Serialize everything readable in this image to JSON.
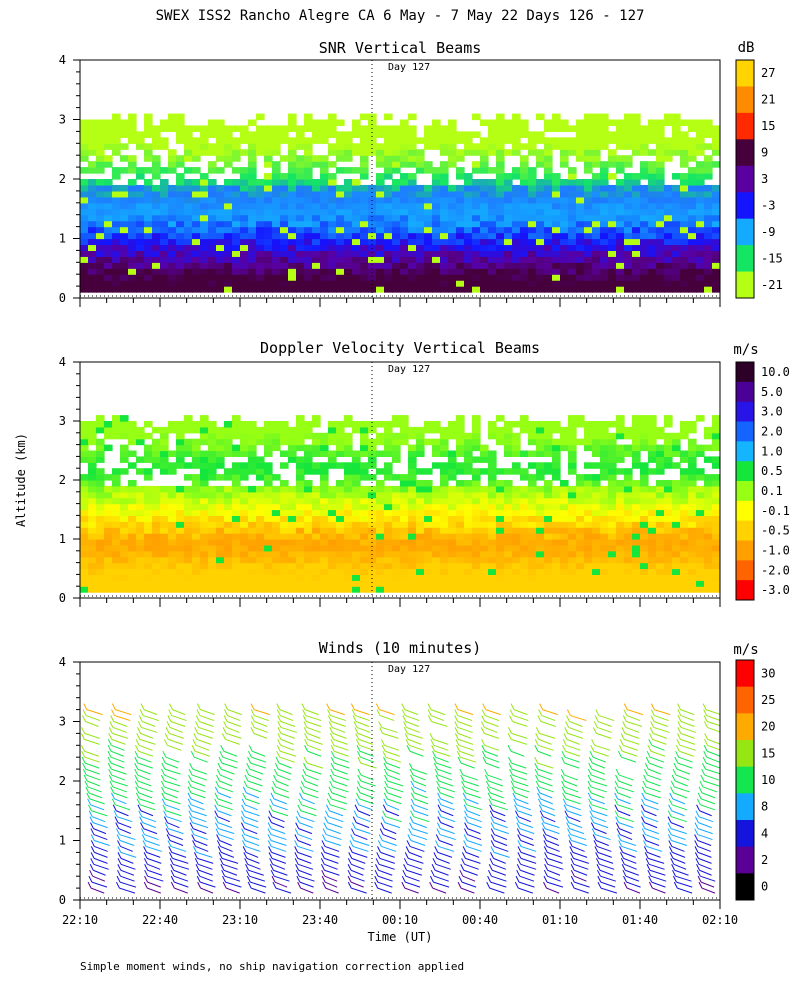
{
  "figure": {
    "title": "SWEX ISS2 Rancho Alegre CA   6 May -  7 May 22 Days 126 - 127",
    "y_label": "Altitude (km)",
    "x_label": "Time (UT)",
    "footnote": "Simple moment winds, no ship navigation correction applied",
    "day_marker_label": "Day 127",
    "time_ticks": [
      "22:10",
      "22:40",
      "23:10",
      "23:40",
      "00:10",
      "00:40",
      "01:10",
      "01:40",
      "02:10"
    ],
    "altitude_ticks": [
      "0",
      "1",
      "2",
      "3",
      "4"
    ]
  },
  "chart_data": [
    {
      "type": "heatmap",
      "title": "SNR Vertical Beams",
      "xlabel": "",
      "ylabel": "Altitude (km)",
      "ylim": [
        0,
        4
      ],
      "xlim": [
        "22:10",
        "02:10"
      ],
      "colorbar": {
        "unit": "dB",
        "labels": [
          "27",
          "21",
          "15",
          "9",
          "3",
          "-3",
          "-9",
          "-15",
          "-21"
        ],
        "colors": [
          "#ffd400",
          "#ff8c00",
          "#ff2a00",
          "#46003c",
          "#5a00a0",
          "#1414ff",
          "#14aaff",
          "#14e664",
          "#b4ff14"
        ]
      },
      "profile": [
        {
          "alt": 0.3,
          "value": 9,
          "color": "#46003c"
        },
        {
          "alt": 0.6,
          "value": 6,
          "color": "#5a00a0"
        },
        {
          "alt": 0.9,
          "value": 0,
          "color": "#1414ff"
        },
        {
          "alt": 1.3,
          "value": -9,
          "color": "#14aaff"
        },
        {
          "alt": 1.7,
          "value": -6,
          "color": "#1e78ff"
        },
        {
          "alt": 2.0,
          "value": -15,
          "color": "#14e664"
        },
        {
          "alt": 2.5,
          "value": -21,
          "color": "#b4ff14"
        },
        {
          "alt": 2.9,
          "value": -18,
          "color": "#b4ff14"
        }
      ]
    },
    {
      "type": "heatmap",
      "title": "Doppler Velocity Vertical Beams",
      "xlabel": "",
      "ylabel": "Altitude (km)",
      "ylim": [
        0,
        4
      ],
      "xlim": [
        "22:10",
        "02:10"
      ],
      "colorbar": {
        "unit": "m/s",
        "labels": [
          "10.0",
          "5.0",
          "3.0",
          "2.0",
          "1.0",
          "0.5",
          "0.1",
          "-0.1",
          "-0.5",
          "-1.0",
          "-2.0",
          "-3.0"
        ],
        "colors": [
          "#2d0028",
          "#4b0096",
          "#2814e6",
          "#1464ff",
          "#14b4ff",
          "#14e63c",
          "#96ff14",
          "#ffff00",
          "#ffd200",
          "#ffa000",
          "#ff6400",
          "#ff0000"
        ]
      },
      "profile": [
        {
          "alt": 0.4,
          "value": -0.5,
          "color": "#ffd200"
        },
        {
          "alt": 0.9,
          "value": -1.0,
          "color": "#ffa000"
        },
        {
          "alt": 1.4,
          "value": -0.1,
          "color": "#ffff00"
        },
        {
          "alt": 1.8,
          "value": 0.1,
          "color": "#96ff14"
        },
        {
          "alt": 2.2,
          "value": 0.5,
          "color": "#14e63c"
        },
        {
          "alt": 2.7,
          "value": 0.1,
          "color": "#96ff14"
        }
      ]
    },
    {
      "type": "scatter",
      "title": "Winds (10 minutes)",
      "xlabel": "Time (UT)",
      "ylabel": "Altitude (km)",
      "ylim": [
        0,
        4
      ],
      "xlim": [
        "22:10",
        "02:10"
      ],
      "colorbar": {
        "unit": "m/s",
        "labels": [
          "30",
          "25",
          "20",
          "15",
          "10",
          "8",
          "4",
          "2",
          "0"
        ],
        "colors": [
          "#ff0000",
          "#ff6400",
          "#ffaa00",
          "#96e614",
          "#14e650",
          "#14aaff",
          "#1414dc",
          "#5a0096",
          "#000000"
        ]
      },
      "profile_times": [
        "22:15",
        "22:25",
        "22:35",
        "22:45",
        "22:55",
        "23:05",
        "23:15",
        "23:25",
        "23:35",
        "23:45",
        "23:55",
        "00:05",
        "00:15",
        "00:25",
        "00:35",
        "00:45",
        "00:55",
        "01:05",
        "01:15",
        "01:25",
        "01:35",
        "01:45",
        "01:55",
        "02:05"
      ],
      "speed_profile": [
        {
          "alt": 0.2,
          "speed": 4
        },
        {
          "alt": 0.6,
          "speed": 6
        },
        {
          "alt": 1.0,
          "speed": 8
        },
        {
          "alt": 1.5,
          "speed": 9
        },
        {
          "alt": 2.0,
          "speed": 12
        },
        {
          "alt": 2.5,
          "speed": 15
        },
        {
          "alt": 3.0,
          "speed": 18
        },
        {
          "alt": 3.3,
          "speed": 20
        }
      ]
    }
  ]
}
